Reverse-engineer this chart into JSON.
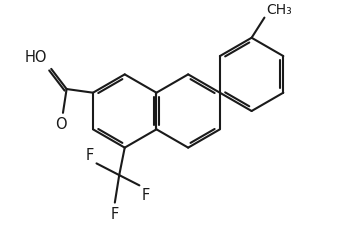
{
  "bg_color": "#ffffff",
  "line_color": "#1a1a1a",
  "line_width": 1.5,
  "font_size": 10.5,
  "figsize": [
    3.52,
    2.32
  ],
  "dpi": 100,
  "xlim": [
    0,
    8.8
  ],
  "ylim": [
    0,
    5.8
  ]
}
